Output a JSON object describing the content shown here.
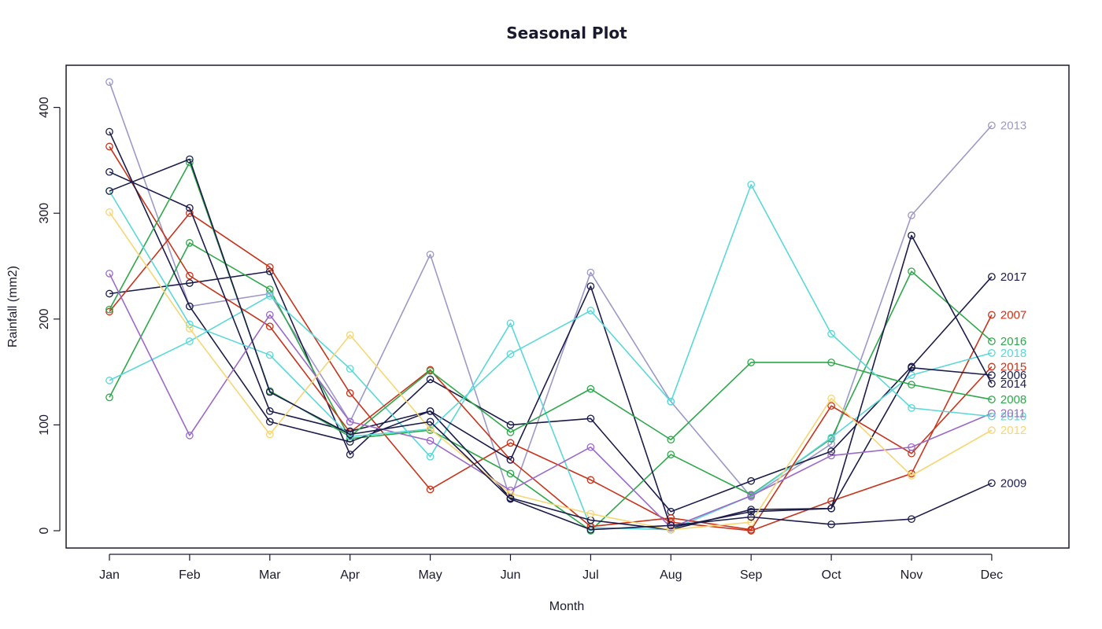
{
  "chart_data": {
    "type": "line",
    "title": "Seasonal Plot",
    "xlabel": "Month",
    "ylabel": "Rainfall (mm2)",
    "categories": [
      "Jan",
      "Feb",
      "Mar",
      "Apr",
      "May",
      "Jun",
      "Jul",
      "Aug",
      "Sep",
      "Oct",
      "Nov",
      "Dec"
    ],
    "yticks": [
      0,
      100,
      200,
      300,
      400
    ],
    "ylim": [
      -15,
      440
    ],
    "grid": false,
    "legend": "series labels at right end of each line",
    "series": [
      {
        "name": "2013",
        "color": "#9c99c8",
        "values": [
          424,
          212,
          224,
          103,
          261,
          30,
          244,
          122,
          32,
          82,
          298,
          383
        ]
      },
      {
        "name": "2017",
        "color": "#1c1c4a",
        "values": [
          224,
          234,
          245,
          72,
          143,
          100,
          106,
          18,
          47,
          75,
          155,
          240
        ]
      },
      {
        "name": "2007",
        "color": "#c8341b",
        "values": [
          207,
          300,
          249,
          130,
          39,
          83,
          48,
          8,
          0,
          28,
          54,
          204
        ]
      },
      {
        "name": "2016",
        "color": "#2ea84a",
        "values": [
          126,
          272,
          228,
          87,
          95,
          54,
          0,
          72,
          34,
          87,
          245,
          179
        ]
      },
      {
        "name": "2018",
        "color": "#5ad8d8",
        "values": [
          142,
          179,
          222,
          153,
          70,
          196,
          3,
          1,
          33,
          88,
          147,
          168
        ]
      },
      {
        "name": "2015",
        "color": "#c8341b",
        "values": [
          363,
          241,
          193,
          93,
          152,
          67,
          4,
          12,
          1,
          118,
          73,
          155
        ]
      },
      {
        "name": "2006",
        "color": "#1c1c4a",
        "values": [
          339,
          305,
          113,
          94,
          113,
          67,
          231,
          3,
          18,
          21,
          154,
          147
        ]
      },
      {
        "name": "2014",
        "color": "#1c1c4a",
        "values": [
          377,
          212,
          103,
          84,
          113,
          31,
          10,
          1,
          20,
          21,
          279,
          139
        ]
      },
      {
        "name": "2008",
        "color": "#2ea84a",
        "values": [
          209,
          348,
          132,
          89,
          151,
          93,
          134,
          86,
          159,
          159,
          138,
          124
        ]
      },
      {
        "name": "2011",
        "color": "#9b6ac8",
        "values": [
          243,
          90,
          204,
          103,
          85,
          38,
          79,
          3,
          33,
          71,
          79,
          111
        ]
      },
      {
        "name": "2010",
        "color": "#5ad8d8",
        "values": [
          321,
          195,
          166,
          89,
          96,
          167,
          208,
          122,
          327,
          186,
          116,
          108
        ]
      },
      {
        "name": "2012",
        "color": "#f6d675",
        "values": [
          301,
          191,
          91,
          185,
          96,
          35,
          16,
          1,
          8,
          125,
          52,
          95
        ]
      },
      {
        "name": "2009",
        "color": "#1c1c4a",
        "values": [
          321,
          351,
          131,
          91,
          103,
          30,
          1,
          5,
          13,
          6,
          11,
          45
        ]
      }
    ]
  }
}
